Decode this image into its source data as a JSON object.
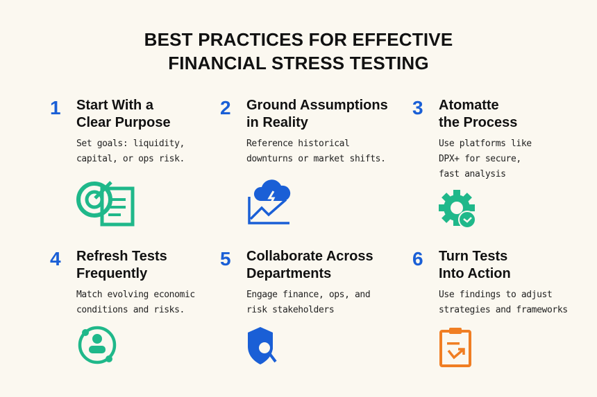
{
  "title": {
    "line1": "BEST PRACTICES FOR EFFECTIVE",
    "line2": "FINANCIAL STRESS TESTING"
  },
  "colors": {
    "background": "#fbf8f0",
    "number": "#1a5fd6",
    "green": "#1fb88a",
    "blue": "#1a5fd6",
    "orange": "#f07e23"
  },
  "practices": [
    {
      "number": "1",
      "heading1": "Start With a",
      "heading2": "Clear Purpose",
      "desc1": "Set goals: liquidity,",
      "desc2": "capital, or ops risk.",
      "desc3": "",
      "icon": "target-document-icon"
    },
    {
      "number": "2",
      "heading1": "Ground Assumptions",
      "heading2": "in Reality",
      "desc1": "Reference historical",
      "desc2": "downturns or market shifts.",
      "desc3": "",
      "icon": "storm-chart-icon"
    },
    {
      "number": "3",
      "heading1": "Atomatte",
      "heading2": "the Process",
      "desc1": "Use platforms like",
      "desc2": "DPX+ for secure,",
      "desc3": "fast analysis",
      "icon": "gear-check-icon"
    },
    {
      "number": "4",
      "heading1": "Refresh Tests",
      "heading2": "Frequently",
      "desc1": "Match evolving economic",
      "desc2": "conditions and risks.",
      "desc3": "",
      "icon": "user-refresh-icon"
    },
    {
      "number": "5",
      "heading1": "Collaborate Across",
      "heading2": "Departments",
      "desc1": "Engage finance, ops, and",
      "desc2": "risk stakeholders",
      "desc3": "",
      "icon": "shield-search-icon"
    },
    {
      "number": "6",
      "heading1": "Turn Tests",
      "heading2": "Into Action",
      "desc1": "Use findings to adjust",
      "desc2": "strategies and frameworks",
      "desc3": "",
      "icon": "clipboard-arrow-icon"
    }
  ]
}
